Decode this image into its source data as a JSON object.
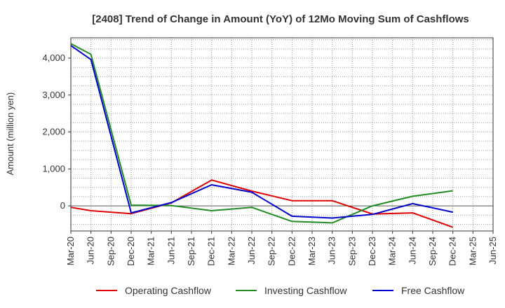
{
  "chart_data": {
    "type": "line",
    "title": "[2408]  Trend of Change in Amount (YoY) of 12Mo Moving Sum of Cashflows",
    "xlabel": "",
    "ylabel": "Amount (million yen)",
    "ylim": [
      -680,
      4550
    ],
    "yticks": [
      0,
      1000,
      2000,
      3000,
      4000
    ],
    "ytick_labels": [
      "0",
      "1,000",
      "2,000",
      "3,000",
      "4,000"
    ],
    "categories": [
      "Mar-20",
      "Jun-20",
      "Sep-20",
      "Dec-20",
      "Mar-21",
      "Jun-21",
      "Sep-21",
      "Dec-21",
      "Mar-22",
      "Jun-22",
      "Sep-22",
      "Dec-22",
      "Mar-23",
      "Jun-23",
      "Sep-23",
      "Dec-23",
      "Mar-24",
      "Jun-24",
      "Sep-24",
      "Dec-24",
      "Mar-25",
      "Jun-25"
    ],
    "grid": true,
    "legend_position": "bottom",
    "series": [
      {
        "name": "Operating Cashflow",
        "color": "#dd0000",
        "values": [
          -40,
          -130,
          null,
          -210,
          null,
          80,
          null,
          700,
          null,
          400,
          null,
          140,
          null,
          140,
          null,
          -220,
          null,
          -190,
          null,
          -580,
          null,
          null
        ]
      },
      {
        "name": "Investing Cashflow",
        "color": "#228b22",
        "values": [
          4390,
          4100,
          null,
          20,
          null,
          10,
          null,
          -130,
          null,
          -40,
          null,
          -420,
          null,
          -460,
          null,
          0,
          null,
          260,
          null,
          410,
          null,
          null
        ]
      },
      {
        "name": "Free Cashflow",
        "color": "#0000cc",
        "values": [
          4340,
          3960,
          null,
          -190,
          null,
          90,
          null,
          570,
          null,
          370,
          null,
          -280,
          null,
          -330,
          null,
          -230,
          null,
          60,
          null,
          -170,
          null,
          null
        ]
      }
    ]
  }
}
